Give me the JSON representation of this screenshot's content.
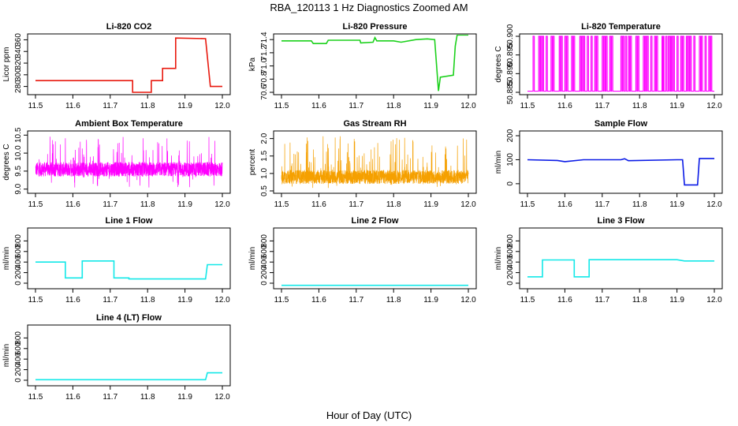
{
  "figure": {
    "title": "RBA_120113  1 Hz Diagnostics Zoomed AM",
    "xlabel": "Hour of Day (UTC)"
  },
  "colors": {
    "red": "#e8190e",
    "green": "#1bd11b",
    "magenta": "#ff00ff",
    "orange": "#f5a000",
    "blue": "#0a1ae6",
    "cyan": "#13e8e8"
  },
  "chart_data": [
    {
      "type": "line",
      "title": "Li-820 CO2",
      "ylabel": "Licor ppm",
      "xlim": [
        11.5,
        12.0
      ],
      "ylim": [
        270,
        366
      ],
      "xticks": [
        11.5,
        11.6,
        11.7,
        11.8,
        11.9,
        12.0
      ],
      "yticks": [
        280,
        300,
        320,
        340,
        360
      ],
      "color": "red",
      "x": [
        11.5,
        11.76,
        11.76,
        11.81,
        11.81,
        11.84,
        11.84,
        11.875,
        11.875,
        11.955,
        11.968,
        12.0
      ],
      "y": [
        290,
        290,
        270,
        270,
        290,
        290,
        311,
        311,
        363,
        362,
        280,
        280
      ]
    },
    {
      "type": "line",
      "title": "Li-820 Pressure",
      "ylabel": "kPa",
      "xlim": [
        11.5,
        12.0
      ],
      "ylim": [
        70.6,
        71.45
      ],
      "xticks": [
        11.5,
        11.6,
        11.7,
        11.8,
        11.9,
        12.0
      ],
      "yticks": [
        70.6,
        70.8,
        71.0,
        71.2,
        71.4
      ],
      "color": "green",
      "x": [
        11.5,
        11.58,
        11.585,
        11.62,
        11.625,
        11.71,
        11.712,
        11.745,
        11.75,
        11.755,
        11.8,
        11.82,
        11.86,
        11.89,
        11.91,
        11.92,
        11.925,
        11.96,
        11.965,
        11.97,
        12.0
      ],
      "y": [
        71.38,
        71.38,
        71.34,
        71.34,
        71.39,
        71.39,
        71.35,
        71.36,
        71.43,
        71.38,
        71.38,
        71.36,
        71.4,
        71.41,
        71.4,
        70.62,
        70.83,
        70.86,
        71.3,
        71.47,
        71.47
      ]
    },
    {
      "type": "line",
      "title": "Li-820 Temperature",
      "ylabel": "degrees C",
      "xlim": [
        11.5,
        12.0
      ],
      "ylim": [
        50.885,
        50.9
      ],
      "xticks": [
        11.5,
        11.6,
        11.7,
        11.8,
        11.9,
        12.0
      ],
      "yticks": [
        50.885,
        50.89,
        50.895,
        50.9
      ],
      "color": "magenta",
      "x": [
        11.515,
        11.53,
        11.535,
        11.54,
        11.55,
        11.563,
        11.568,
        11.585,
        11.59,
        11.6,
        11.605,
        11.618,
        11.623,
        11.64,
        11.645,
        11.65,
        11.66,
        11.67,
        11.68,
        11.685,
        11.7,
        11.705,
        11.71,
        11.72,
        11.725,
        11.75,
        11.755,
        11.762,
        11.77,
        11.775,
        11.79,
        11.795,
        11.81,
        11.815,
        11.82,
        11.83,
        11.84,
        11.845,
        11.86,
        11.862,
        11.87,
        11.877,
        11.88,
        11.885,
        11.89,
        11.9,
        11.91,
        11.915,
        11.925,
        11.93,
        11.935,
        11.945,
        11.96,
        11.965,
        11.975,
        11.985,
        11.99
      ]
    },
    {
      "type": "line",
      "title": "Ambient Box Temperature",
      "ylabel": "degrees C",
      "xlim": [
        11.5,
        12.0
      ],
      "ylim": [
        8.95,
        10.55
      ],
      "xticks": [
        11.5,
        11.6,
        11.7,
        11.8,
        11.9,
        12.0
      ],
      "yticks": [
        9.0,
        9.5,
        10.0,
        10.5
      ],
      "color": "magenta",
      "y_band": [
        9.35,
        9.75
      ]
    },
    {
      "type": "line",
      "title": "Gas Stream RH",
      "ylabel": "percent",
      "xlim": [
        11.5,
        12.0
      ],
      "ylim": [
        0.5,
        2.15
      ],
      "xticks": [
        11.5,
        11.6,
        11.7,
        11.8,
        11.9,
        12.0
      ],
      "yticks": [
        0.5,
        1.0,
        1.5,
        2.0
      ],
      "color": "orange",
      "y_band": [
        0.7,
        1.1
      ]
    },
    {
      "type": "line",
      "title": "Sample Flow",
      "ylabel": "ml/min",
      "xlim": [
        11.5,
        12.0
      ],
      "ylim": [
        -30,
        210
      ],
      "xticks": [
        11.5,
        11.6,
        11.7,
        11.8,
        11.9,
        12.0
      ],
      "yticks": [
        0,
        100,
        200
      ],
      "color": "blue",
      "x": [
        11.5,
        11.58,
        11.6,
        11.65,
        11.75,
        11.76,
        11.77,
        11.9,
        11.915,
        11.92,
        11.955,
        11.96,
        12.0
      ],
      "y": [
        100,
        97,
        92,
        100,
        100,
        104,
        96,
        100,
        100,
        -5,
        -5,
        105,
        105
      ]
    },
    {
      "type": "line",
      "title": "Line 1 Flow",
      "ylabel": "ml/min",
      "xlim": [
        11.5,
        12.0
      ],
      "ylim": [
        -60,
        1000
      ],
      "xticks": [
        11.5,
        11.6,
        11.7,
        11.8,
        11.9,
        12.0
      ],
      "yticks": [
        0,
        200,
        400,
        600,
        800
      ],
      "color": "cyan",
      "x": [
        11.5,
        11.58,
        11.58,
        11.625,
        11.625,
        11.71,
        11.71,
        11.75,
        11.75,
        11.955,
        11.96,
        12.0
      ],
      "y": [
        400,
        400,
        100,
        100,
        420,
        420,
        100,
        100,
        80,
        80,
        350,
        350
      ]
    },
    {
      "type": "line",
      "title": "Line 2 Flow",
      "ylabel": "ml/min",
      "xlim": [
        11.5,
        12.0
      ],
      "ylim": [
        -60,
        1000
      ],
      "xticks": [
        11.5,
        11.6,
        11.7,
        11.8,
        11.9,
        12.0
      ],
      "yticks": [
        0,
        200,
        400,
        600,
        800
      ],
      "color": "cyan",
      "x": [
        11.5,
        12.0
      ],
      "y": [
        -40,
        -40
      ]
    },
    {
      "type": "line",
      "title": "Line 3 Flow",
      "ylabel": "ml/min",
      "xlim": [
        11.5,
        12.0
      ],
      "ylim": [
        -60,
        1000
      ],
      "xticks": [
        11.5,
        11.6,
        11.7,
        11.8,
        11.9,
        12.0
      ],
      "yticks": [
        0,
        200,
        400,
        600,
        800
      ],
      "color": "cyan",
      "x": [
        11.5,
        11.54,
        11.54,
        11.625,
        11.625,
        11.665,
        11.665,
        11.9,
        11.92,
        12.0
      ],
      "y": [
        120,
        120,
        440,
        440,
        120,
        120,
        445,
        445,
        420,
        420
      ]
    },
    {
      "type": "line",
      "title": "Line 4 (LT) Flow",
      "ylabel": "ml/min",
      "xlim": [
        11.5,
        12.0
      ],
      "ylim": [
        -60,
        1000
      ],
      "xticks": [
        11.5,
        11.6,
        11.7,
        11.8,
        11.9,
        12.0
      ],
      "yticks": [
        0,
        200,
        400,
        600,
        800
      ],
      "color": "cyan",
      "x": [
        11.5,
        11.955,
        11.96,
        11.965,
        12.0
      ],
      "y": [
        10,
        10,
        140,
        140,
        140
      ]
    }
  ]
}
